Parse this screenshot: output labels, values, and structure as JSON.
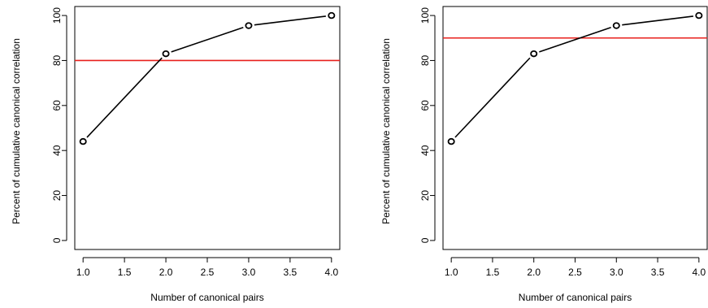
{
  "chart_data": [
    {
      "type": "line",
      "title": "",
      "xlabel": "Number of canonical pairs",
      "ylabel": "Percent of cumulative canonical correlation",
      "x": [
        1,
        2,
        3,
        4
      ],
      "series": [
        {
          "values": [
            44,
            83,
            95.5,
            100
          ]
        }
      ],
      "xlim": [
        0.9,
        4.1
      ],
      "ylim": [
        -4,
        104
      ],
      "xticks": [
        "1.0",
        "1.5",
        "2.0",
        "2.5",
        "3.0",
        "3.5",
        "4.0"
      ],
      "yticks": [
        "0",
        "20",
        "40",
        "60",
        "80",
        "100"
      ],
      "reference_line": {
        "y": 80,
        "color": "#e8201c"
      },
      "grid": false
    },
    {
      "type": "line",
      "title": "",
      "xlabel": "Number of canonical pairs",
      "ylabel": "Percent of cumulative canonical correlation",
      "x": [
        1,
        2,
        3,
        4
      ],
      "series": [
        {
          "values": [
            44,
            83,
            95.5,
            100
          ]
        }
      ],
      "xlim": [
        0.9,
        4.1
      ],
      "ylim": [
        -4,
        104
      ],
      "xticks": [
        "1.0",
        "1.5",
        "2.0",
        "2.5",
        "3.0",
        "3.5",
        "4.0"
      ],
      "yticks": [
        "0",
        "20",
        "40",
        "60",
        "80",
        "100"
      ],
      "reference_line": {
        "y": 90,
        "color": "#e8201c"
      },
      "grid": false
    }
  ]
}
